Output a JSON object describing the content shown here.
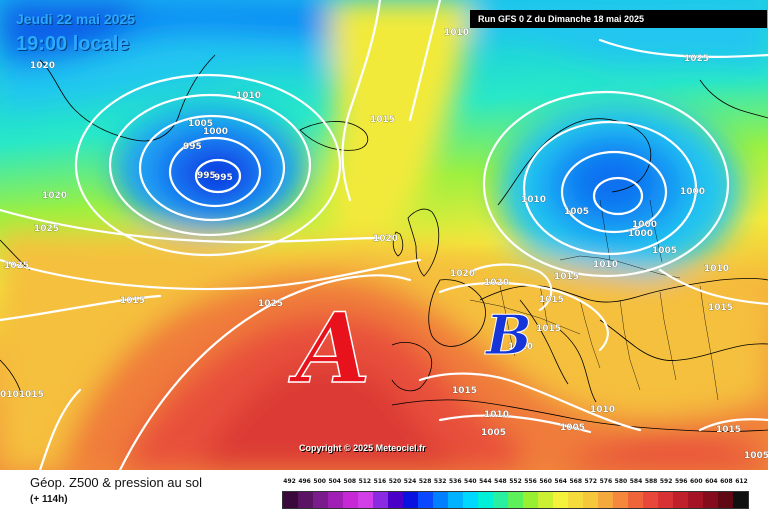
{
  "header": {
    "date": "Jeudi 22 mai 2025",
    "time": "19:00 locale",
    "run_info": "Run GFS 0 Z du Dimanche 18 mai 2025"
  },
  "map": {
    "pressure_labels": [
      "1020",
      "1010",
      "1010",
      "1025",
      "1005",
      "1000",
      "995",
      "995",
      "995",
      "1015",
      "1020",
      "1025",
      "1025",
      "1015",
      "1025",
      "1020",
      "1020",
      "1020",
      "1015",
      "1015",
      "1015",
      "1015",
      "1010",
      "1010",
      "1005",
      "1010",
      "1005",
      "1010",
      "1005",
      "1000",
      "1000",
      "1000",
      "1010",
      "1015",
      "1015",
      "1005",
      "1010",
      "1005",
      "0101015"
    ],
    "pressure_systems": [
      {
        "letter": "A",
        "meaning": "anticyclone",
        "color": "#e8121c"
      },
      {
        "letter": "B",
        "meaning": "dépression",
        "color": "#1535d8"
      }
    ],
    "copyright": "Copyright © 2025 Meteociel.fr"
  },
  "footer": {
    "title": "Géop. Z500 & pression au sol",
    "forecast_hour": "(+ 114h)",
    "scale_ticks": [
      "492",
      "496",
      "500",
      "504",
      "508",
      "512",
      "516",
      "520",
      "524",
      "528",
      "532",
      "536",
      "540",
      "544",
      "548",
      "552",
      "556",
      "560",
      "564",
      "568",
      "572",
      "576",
      "580",
      "584",
      "588",
      "592",
      "596",
      "600",
      "604",
      "608",
      "612"
    ],
    "scale_colors": [
      "#3b0a3c",
      "#5a1463",
      "#7a1c8c",
      "#a01fb4",
      "#c628d6",
      "#d23ee8",
      "#8a2be2",
      "#4b00c8",
      "#0a12e0",
      "#0a48ff",
      "#0080ff",
      "#00b2ff",
      "#00d8ff",
      "#00f0d8",
      "#28f0a0",
      "#5cf05a",
      "#98f032",
      "#ccf032",
      "#f5f23c",
      "#f5dc3c",
      "#f5c83c",
      "#f5a83c",
      "#f5883c",
      "#f0643a",
      "#e8483a",
      "#d83234",
      "#c0202c",
      "#a41424",
      "#840c1c",
      "#600814",
      "#101010"
    ]
  },
  "colors": {
    "accent_text": "#2ba8ff",
    "isobar": "#ffffff"
  }
}
